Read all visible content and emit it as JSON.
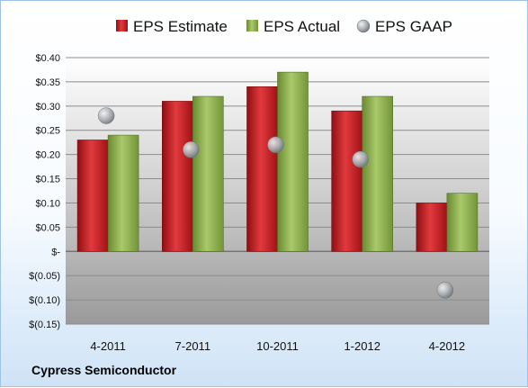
{
  "chart_data": {
    "type": "bar",
    "categories": [
      "4-2011",
      "7-2011",
      "10-2011",
      "1-2012",
      "4-2012"
    ],
    "series": [
      {
        "name": "EPS Estimate",
        "kind": "bar",
        "color": "#c0161c",
        "values": [
          0.23,
          0.31,
          0.34,
          0.29,
          0.1
        ]
      },
      {
        "name": "EPS Actual",
        "kind": "bar",
        "color": "#8db04a",
        "values": [
          0.24,
          0.32,
          0.37,
          0.32,
          0.12
        ]
      },
      {
        "name": "EPS GAAP",
        "kind": "marker",
        "color": "#9aa0a6",
        "values": [
          0.28,
          0.21,
          0.22,
          0.19,
          -0.08
        ]
      }
    ],
    "ylim": [
      -0.15,
      0.4
    ],
    "ytick_step": 0.05,
    "ytick_labels": [
      "$(0.15)",
      "$(0.10)",
      "$(0.05)",
      "$-",
      "$0.05",
      "$0.10",
      "$0.15",
      "$0.20",
      "$0.25",
      "$0.30",
      "$0.35",
      "$0.40"
    ],
    "grid": true,
    "legend": "top"
  },
  "footer": {
    "company": "Cypress Semiconductor"
  }
}
